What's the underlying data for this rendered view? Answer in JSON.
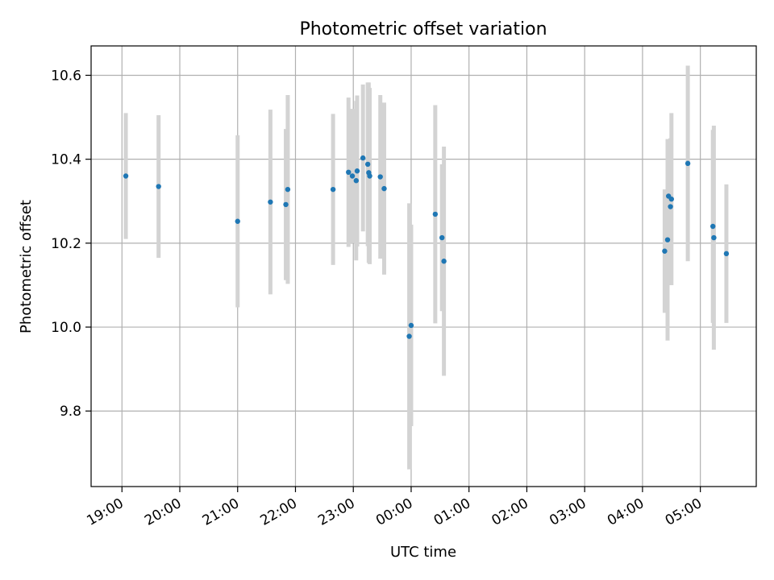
{
  "chart_data": {
    "type": "scatter",
    "title": "Photometric offset variation",
    "xlabel": "UTC time",
    "ylabel": "Photometric offset",
    "x_axis_kind": "time",
    "x_ticks": [
      "19:00",
      "20:00",
      "21:00",
      "22:00",
      "23:00",
      "00:00",
      "01:00",
      "02:00",
      "03:00",
      "04:00",
      "05:00"
    ],
    "y_ticks": [
      "9.8",
      "10.0",
      "10.2",
      "10.4",
      "10.6"
    ],
    "xlim": [
      "18:28",
      "05:58"
    ],
    "ylim": [
      9.62,
      10.67
    ],
    "grid": true,
    "point_color": "#1f77b4",
    "errorbar_color": "#d3d3d3",
    "points": [
      {
        "x": "19:04",
        "y": 10.36,
        "err": 0.15
      },
      {
        "x": "19:38",
        "y": 10.335,
        "err": 0.17
      },
      {
        "x": "21:00",
        "y": 10.252,
        "err": 0.205
      },
      {
        "x": "21:34",
        "y": 10.298,
        "err": 0.22
      },
      {
        "x": "21:50",
        "y": 10.292,
        "err": 0.18
      },
      {
        "x": "21:52",
        "y": 10.328,
        "err": 0.225
      },
      {
        "x": "22:39",
        "y": 10.328,
        "err": 0.18
      },
      {
        "x": "22:55",
        "y": 10.369,
        "err": 0.178
      },
      {
        "x": "22:59",
        "y": 10.36,
        "err": 0.16
      },
      {
        "x": "23:03",
        "y": 10.349,
        "err": 0.19
      },
      {
        "x": "23:04",
        "y": 10.372,
        "err": 0.18
      },
      {
        "x": "23:10",
        "y": 10.403,
        "err": 0.175
      },
      {
        "x": "23:15",
        "y": 10.388,
        "err": 0.195
      },
      {
        "x": "23:16",
        "y": 10.368,
        "err": 0.215
      },
      {
        "x": "23:17",
        "y": 10.36,
        "err": 0.21
      },
      {
        "x": "23:28",
        "y": 10.358,
        "err": 0.195
      },
      {
        "x": "23:32",
        "y": 10.33,
        "err": 0.205
      },
      {
        "x": "23:58",
        "y": 9.978,
        "err": 0.317
      },
      {
        "x": "00:00",
        "y": 10.004,
        "err": 0.24
      },
      {
        "x": "00:25",
        "y": 10.269,
        "err": 0.26
      },
      {
        "x": "00:32",
        "y": 10.213,
        "err": 0.175
      },
      {
        "x": "00:34",
        "y": 10.157,
        "err": 0.273
      },
      {
        "x": "04:23",
        "y": 10.181,
        "err": 0.147
      },
      {
        "x": "04:26",
        "y": 10.208,
        "err": 0.24
      },
      {
        "x": "04:27",
        "y": 10.312,
        "err": 0.135
      },
      {
        "x": "04:29",
        "y": 10.287,
        "err": 0.163
      },
      {
        "x": "04:30",
        "y": 10.305,
        "err": 0.205
      },
      {
        "x": "04:47",
        "y": 10.39,
        "err": 0.233
      },
      {
        "x": "05:13",
        "y": 10.24,
        "err": 0.23
      },
      {
        "x": "05:14",
        "y": 10.213,
        "err": 0.267
      },
      {
        "x": "05:27",
        "y": 10.175,
        "err": 0.165
      }
    ]
  }
}
